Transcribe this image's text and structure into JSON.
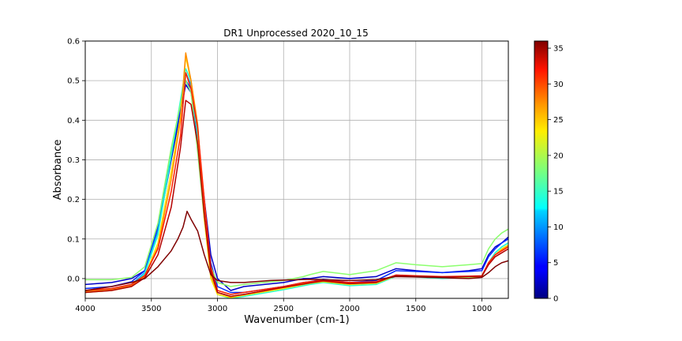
{
  "chart_data": {
    "type": "line",
    "title": "DR1 Unprocessed 2020_10_15",
    "xlabel": "Wavenumber (cm-1)",
    "ylabel": "Absorbance",
    "xlim": [
      4000,
      800
    ],
    "ylim": [
      -0.05,
      0.6
    ],
    "x_ticks": [
      4000,
      3500,
      3000,
      2500,
      2000,
      1500,
      1000
    ],
    "y_ticks": [
      0.0,
      0.1,
      0.2,
      0.3,
      0.4,
      0.5,
      0.6
    ],
    "y_tick_labels": [
      "0.0",
      "0.1",
      "0.2",
      "0.3",
      "0.4",
      "0.5",
      "0.6"
    ],
    "grid": true,
    "colormap": "jet",
    "colorbar": {
      "range": [
        0,
        36
      ],
      "ticks": [
        0,
        5,
        10,
        15,
        20,
        25,
        30,
        35
      ]
    },
    "series": [
      {
        "index": 1,
        "color": "#0000c8",
        "x": [
          4000,
          3800,
          3650,
          3550,
          3450,
          3350,
          3280,
          3240,
          3200,
          3150,
          3100,
          3050,
          3000,
          2900,
          2800,
          2500,
          2350,
          2300,
          2200,
          2000,
          1800,
          1650,
          1500,
          1300,
          1100,
          1000,
          950,
          900,
          850,
          800
        ],
        "y": [
          -0.015,
          -0.01,
          0.0,
          0.02,
          0.12,
          0.3,
          0.42,
          0.49,
          0.47,
          0.35,
          0.2,
          0.06,
          0.0,
          -0.03,
          -0.02,
          -0.01,
          0.0,
          0.0,
          0.005,
          0.0,
          0.005,
          0.025,
          0.02,
          0.015,
          0.02,
          0.025,
          0.06,
          0.08,
          0.09,
          0.105
        ]
      },
      {
        "index": 5,
        "color": "#0028ff",
        "x": [
          4000,
          3800,
          3650,
          3550,
          3450,
          3350,
          3280,
          3240,
          3200,
          3150,
          3100,
          3050,
          3000,
          2900,
          2800,
          2500,
          2350,
          2300,
          2200,
          2000,
          1800,
          1650,
          1500,
          1300,
          1100,
          1000,
          950,
          900,
          850,
          800
        ],
        "y": [
          -0.025,
          -0.02,
          -0.008,
          0.02,
          0.13,
          0.31,
          0.43,
          0.5,
          0.48,
          0.36,
          0.18,
          0.04,
          -0.02,
          -0.035,
          -0.035,
          -0.02,
          -0.01,
          -0.008,
          -0.002,
          -0.01,
          -0.005,
          0.02,
          0.018,
          0.015,
          0.018,
          0.02,
          0.055,
          0.075,
          0.09,
          0.1
        ]
      },
      {
        "index": 10,
        "color": "#00a4ff",
        "x": [
          4000,
          3800,
          3650,
          3550,
          3450,
          3350,
          3280,
          3240,
          3200,
          3150,
          3100,
          3050,
          3000,
          2900,
          2800,
          2500,
          2350,
          2300,
          2200,
          2000,
          1800,
          1650,
          1500,
          1300,
          1100,
          1000,
          950,
          900,
          850,
          800
        ],
        "y": [
          -0.033,
          -0.027,
          -0.015,
          0.015,
          0.12,
          0.32,
          0.44,
          0.52,
          0.49,
          0.36,
          0.16,
          0.02,
          -0.035,
          -0.045,
          -0.04,
          -0.025,
          -0.015,
          -0.012,
          -0.008,
          -0.015,
          -0.012,
          0.008,
          0.005,
          0.002,
          0.005,
          0.005,
          0.04,
          0.065,
          0.08,
          0.09
        ]
      },
      {
        "index": 15,
        "color": "#2affcc",
        "x": [
          4000,
          3800,
          3650,
          3550,
          3450,
          3350,
          3280,
          3240,
          3200,
          3150,
          3100,
          3050,
          3000,
          2900,
          2800,
          2500,
          2350,
          2300,
          2200,
          2000,
          1800,
          1650,
          1500,
          1300,
          1100,
          1000,
          950,
          900,
          850,
          800
        ],
        "y": [
          -0.035,
          -0.03,
          -0.018,
          0.012,
          0.11,
          0.31,
          0.45,
          0.53,
          0.5,
          0.36,
          0.15,
          0.01,
          -0.04,
          -0.05,
          -0.045,
          -0.028,
          -0.018,
          -0.015,
          -0.01,
          -0.018,
          -0.015,
          0.006,
          0.004,
          0.0,
          0.003,
          0.004,
          0.04,
          0.065,
          0.08,
          0.09
        ]
      },
      {
        "index": 19,
        "color": "#8cff6e",
        "x": [
          4000,
          3800,
          3650,
          3550,
          3450,
          3350,
          3280,
          3240,
          3200,
          3150,
          3100,
          3050,
          3000,
          2900,
          2800,
          2500,
          2350,
          2300,
          2200,
          2000,
          1800,
          1650,
          1500,
          1300,
          1100,
          1000,
          950,
          900,
          850,
          800
        ],
        "y": [
          -0.003,
          -0.003,
          0.003,
          0.03,
          0.14,
          0.33,
          0.44,
          0.5,
          0.47,
          0.32,
          0.15,
          0.03,
          -0.01,
          -0.02,
          -0.015,
          -0.005,
          0.005,
          0.01,
          0.018,
          0.01,
          0.02,
          0.04,
          0.035,
          0.03,
          0.035,
          0.038,
          0.075,
          0.1,
          0.115,
          0.125
        ]
      },
      {
        "index": 23,
        "color": "#ffe000",
        "x": [
          4000,
          3800,
          3650,
          3550,
          3450,
          3350,
          3280,
          3240,
          3200,
          3150,
          3100,
          3050,
          3000,
          2900,
          2800,
          2500,
          2350,
          2300,
          2200,
          2000,
          1800,
          1650,
          1500,
          1300,
          1100,
          1000,
          950,
          900,
          850,
          800
        ],
        "y": [
          -0.035,
          -0.03,
          -0.02,
          0.005,
          0.09,
          0.27,
          0.41,
          0.56,
          0.5,
          0.38,
          0.15,
          0.0,
          -0.04,
          -0.048,
          -0.042,
          -0.025,
          -0.015,
          -0.012,
          -0.008,
          -0.015,
          -0.012,
          0.007,
          0.005,
          0.003,
          0.004,
          0.005,
          0.04,
          0.06,
          0.075,
          0.085
        ]
      },
      {
        "index": 28,
        "color": "#ff8c00",
        "x": [
          4000,
          3800,
          3650,
          3550,
          3450,
          3350,
          3280,
          3240,
          3200,
          3150,
          3100,
          3050,
          3000,
          2900,
          2800,
          2500,
          2350,
          2300,
          2200,
          2000,
          1800,
          1650,
          1500,
          1300,
          1100,
          1000,
          950,
          900,
          850,
          800
        ],
        "y": [
          -0.033,
          -0.028,
          -0.018,
          0.005,
          0.08,
          0.25,
          0.4,
          0.57,
          0.5,
          0.39,
          0.17,
          0.01,
          -0.035,
          -0.045,
          -0.04,
          -0.022,
          -0.013,
          -0.01,
          -0.006,
          -0.013,
          -0.01,
          0.008,
          0.006,
          0.004,
          0.005,
          0.006,
          0.04,
          0.06,
          0.072,
          0.082
        ]
      },
      {
        "index": 32,
        "color": "#ff1e00",
        "x": [
          4000,
          3800,
          3650,
          3550,
          3450,
          3350,
          3280,
          3240,
          3200,
          3150,
          3100,
          3050,
          3000,
          2900,
          2800,
          2500,
          2350,
          2300,
          2200,
          2000,
          1800,
          1650,
          1500,
          1300,
          1100,
          1000,
          950,
          900,
          850,
          800
        ],
        "y": [
          -0.03,
          -0.025,
          -0.015,
          0.008,
          0.075,
          0.22,
          0.36,
          0.52,
          0.48,
          0.38,
          0.2,
          0.03,
          -0.03,
          -0.04,
          -0.035,
          -0.02,
          -0.01,
          -0.008,
          -0.004,
          -0.01,
          -0.008,
          0.009,
          0.007,
          0.005,
          0.006,
          0.007,
          0.04,
          0.06,
          0.07,
          0.08
        ]
      },
      {
        "index": 34,
        "color": "#b40000",
        "x": [
          4000,
          3800,
          3650,
          3550,
          3450,
          3350,
          3280,
          3240,
          3200,
          3150,
          3100,
          3050,
          3000,
          2900,
          2800,
          2500,
          2350,
          2300,
          2200,
          2000,
          1800,
          1650,
          1500,
          1300,
          1100,
          1000,
          950,
          900,
          850,
          800
        ],
        "y": [
          -0.035,
          -0.03,
          -0.02,
          0.002,
          0.06,
          0.18,
          0.33,
          0.45,
          0.44,
          0.34,
          0.16,
          0.02,
          -0.035,
          -0.045,
          -0.04,
          -0.022,
          -0.014,
          -0.011,
          -0.006,
          -0.013,
          -0.01,
          0.008,
          0.006,
          0.004,
          0.005,
          0.006,
          0.035,
          0.055,
          0.065,
          0.075
        ]
      },
      {
        "index": 36,
        "color": "#800000",
        "x": [
          4000,
          3800,
          3650,
          3550,
          3450,
          3350,
          3300,
          3260,
          3230,
          3200,
          3150,
          3100,
          3050,
          3000,
          2900,
          2800,
          2600,
          2400,
          2300,
          2200,
          2000,
          1800,
          1650,
          1500,
          1300,
          1100,
          1000,
          950,
          900,
          850,
          800
        ],
        "y": [
          -0.03,
          -0.02,
          -0.01,
          0.0,
          0.03,
          0.07,
          0.1,
          0.13,
          0.17,
          0.15,
          0.12,
          0.06,
          0.01,
          -0.005,
          -0.01,
          -0.01,
          -0.005,
          -0.003,
          -0.002,
          -0.003,
          -0.005,
          -0.003,
          0.005,
          0.004,
          0.002,
          0.0,
          0.003,
          0.015,
          0.03,
          0.04,
          0.045
        ]
      }
    ]
  }
}
